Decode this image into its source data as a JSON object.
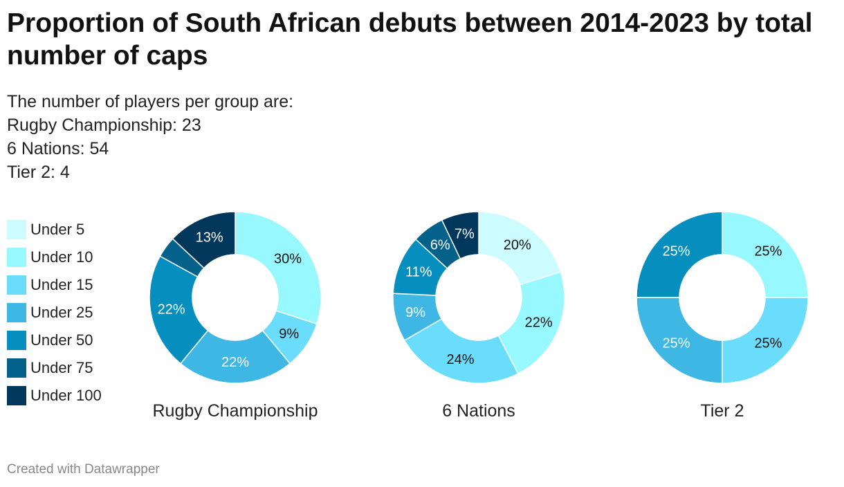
{
  "header": {
    "title": "Proportion of South African debuts between 2014-2023 by total number of caps",
    "description": [
      "The number of players per group are:",
      "Rugby Championship: 23",
      "6 Nations: 54",
      "Tier 2: 4"
    ]
  },
  "legend": [
    {
      "label": "Under 5",
      "color": "#ccfcff"
    },
    {
      "label": "Under 10",
      "color": "#98f8ff"
    },
    {
      "label": "Under 15",
      "color": "#6adcfc"
    },
    {
      "label": "Under 25",
      "color": "#3fb7e4"
    },
    {
      "label": "Under 50",
      "color": "#068fbe"
    },
    {
      "label": "Under 75",
      "color": "#04628a"
    },
    {
      "label": "Under 100",
      "color": "#02375c"
    }
  ],
  "chart_data": [
    {
      "type": "pie",
      "title": "Rugby Championship",
      "categories": [
        "Under 5",
        "Under 10",
        "Under 15",
        "Under 25",
        "Under 50",
        "Under 75",
        "Under 100"
      ],
      "values": [
        0,
        30,
        9,
        22,
        22,
        4,
        13
      ],
      "labels": [
        "",
        "30%",
        "9%",
        "22%",
        "22%",
        "",
        "13%"
      ]
    },
    {
      "type": "pie",
      "title": "6 Nations",
      "categories": [
        "Under 5",
        "Under 10",
        "Under 15",
        "Under 25",
        "Under 50",
        "Under 75",
        "Under 100"
      ],
      "values": [
        20,
        22,
        24,
        9,
        11,
        6,
        7
      ],
      "labels": [
        "20%",
        "22%",
        "24%",
        "9%",
        "11%",
        "6%",
        "7%"
      ]
    },
    {
      "type": "pie",
      "title": "Tier 2",
      "categories": [
        "Under 5",
        "Under 10",
        "Under 15",
        "Under 25",
        "Under 50",
        "Under 75",
        "Under 100"
      ],
      "values": [
        0,
        25,
        25,
        25,
        25,
        0,
        0
      ],
      "labels": [
        "",
        "25%",
        "25%",
        "25%",
        "25%",
        "",
        ""
      ]
    }
  ],
  "footer": {
    "credit": "Created with Datawrapper"
  }
}
